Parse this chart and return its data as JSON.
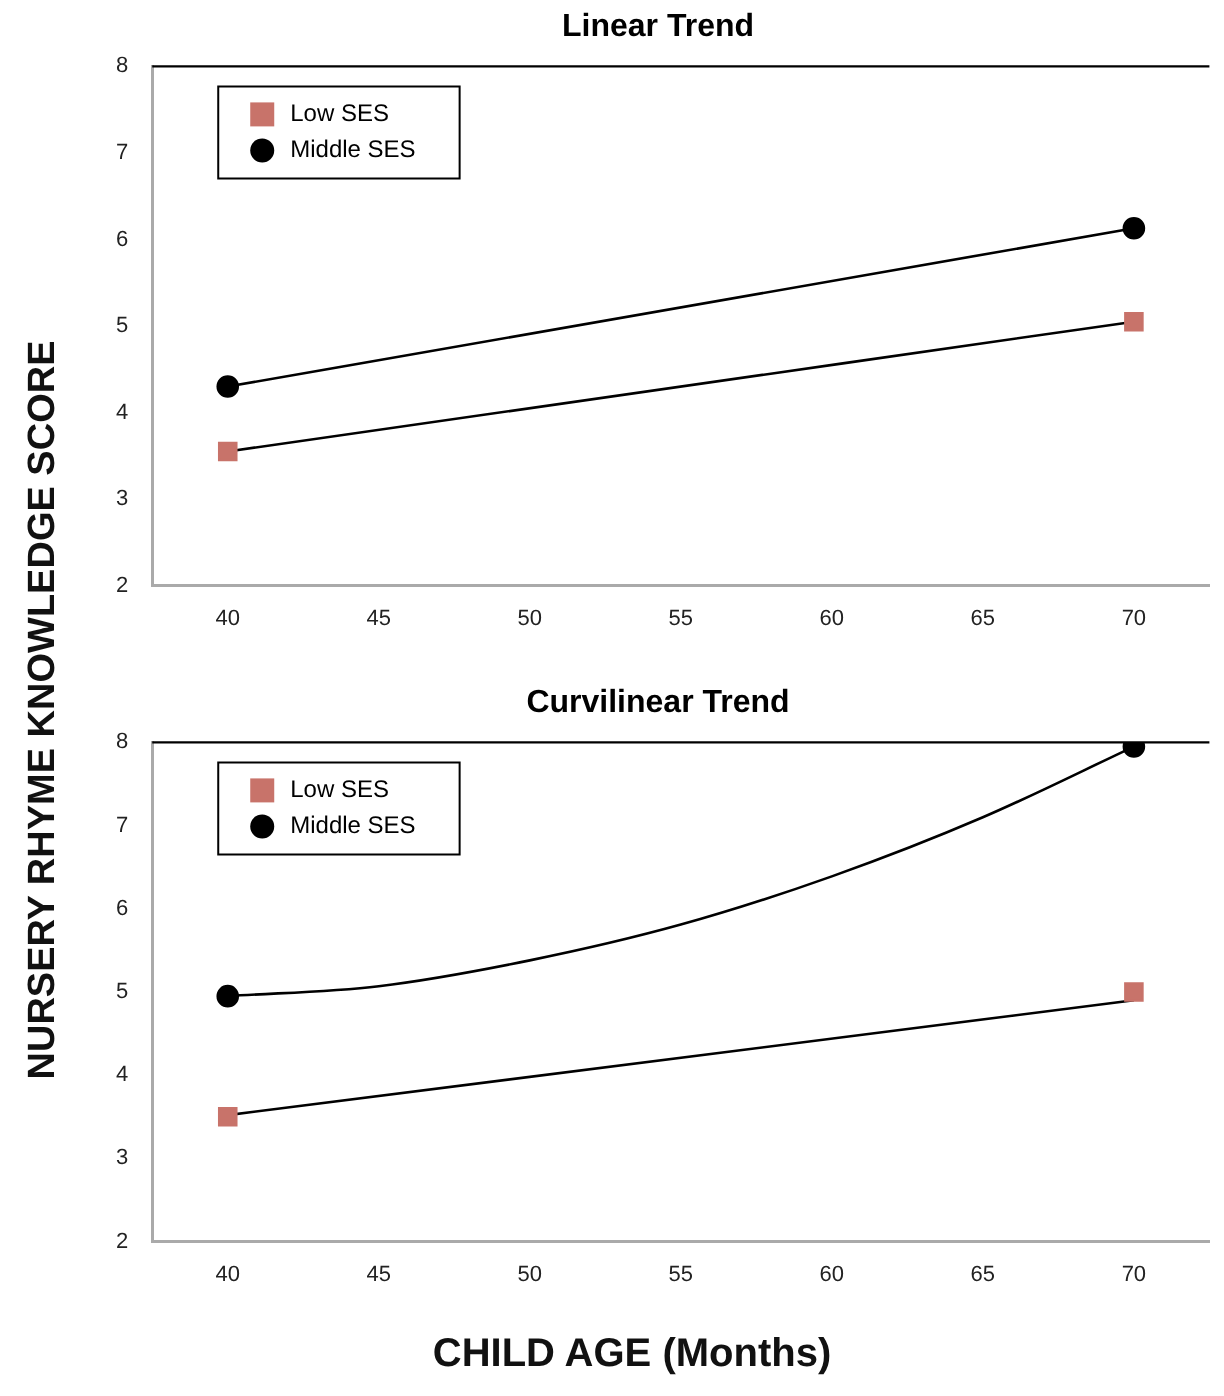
{
  "chart_data": [
    {
      "type": "line",
      "title": "Linear Trend",
      "ylabel": "NURSERY RHYME KNOWLEDGE SCORE",
      "xlim": [
        37.5,
        72.5
      ],
      "xticks": [
        40,
        45,
        50,
        55,
        60,
        65,
        70
      ],
      "ylim": [
        2,
        8
      ],
      "yticks": [
        2,
        3,
        4,
        5,
        6,
        7,
        8
      ],
      "grid": false,
      "legend": "top left",
      "series": [
        {
          "name": "Low SES",
          "color": "#c8736a",
          "marker": "square",
          "x": [
            40,
            70
          ],
          "values": [
            3.55,
            5.05
          ]
        },
        {
          "name": "Middle SES",
          "color": "#000000",
          "marker": "circle",
          "x": [
            40,
            70
          ],
          "values": [
            4.3,
            6.13
          ]
        }
      ]
    },
    {
      "type": "scatter",
      "title": "Curvilinear Trend",
      "xlabel": "CHILD AGE (Months)",
      "xlim": [
        37.5,
        72.5
      ],
      "xticks": [
        40,
        45,
        50,
        55,
        60,
        65,
        70
      ],
      "ylim": [
        2,
        8
      ],
      "yticks": [
        2,
        3,
        4,
        5,
        6,
        7,
        8
      ],
      "grid": false,
      "legend": "top left",
      "series": [
        {
          "name": "Low SES",
          "color": "#c8736a",
          "marker": "square",
          "x": [
            40,
            70
          ],
          "values": [
            3.5,
            5.0
          ]
        },
        {
          "name": "Middle SES",
          "color": "#000000",
          "marker": "circle",
          "x": [
            40,
            70
          ],
          "values": [
            4.95,
            7.95
          ]
        },
        {
          "type": "line",
          "color": "#000000",
          "marker": "none",
          "x": [
            40,
            70
          ],
          "values": [
            3.52,
            4.9
          ]
        },
        {
          "type": "line",
          "color": "#000000",
          "marker": "none",
          "x": [
            40,
            45,
            50,
            55,
            60,
            65,
            70
          ],
          "values": [
            4.95,
            5.07,
            5.38,
            5.81,
            6.39,
            7.1,
            7.95
          ]
        }
      ]
    }
  ]
}
